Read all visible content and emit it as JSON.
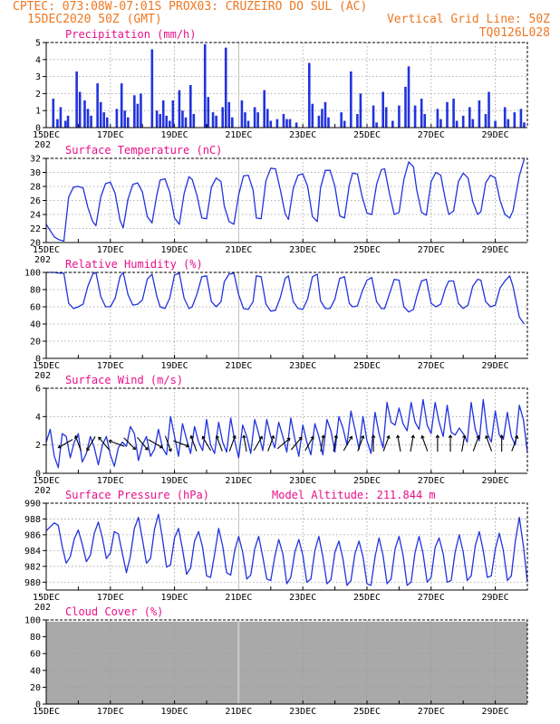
{
  "header": {
    "line1_left": "CPTEC:   073:08W-07:01S   PROX03: CRUZEIRO DO SUL (AC)",
    "line2_left": "15DEC2020 50Z (GMT)",
    "line2_right": "Vertical Grid Line: 50Z",
    "line3_right": "TQ0126L028"
  },
  "colors": {
    "header": "#ee7722",
    "panel_title": "#e8108a",
    "series": "#2233dd",
    "cloud": "#a9a9a9",
    "grid": "#9a9a9a",
    "text": "#000000"
  },
  "x_axis": {
    "labels": [
      "15DEC",
      "17DEC",
      "19DEC",
      "21DEC",
      "23DEC",
      "25DEC",
      "27DEC",
      "29DEC"
    ],
    "label_days": [
      0,
      2,
      4,
      6,
      8,
      10,
      12,
      14
    ],
    "partial_label": "202",
    "xlim_days": [
      0,
      15
    ],
    "vertical_grid_days": [
      6
    ]
  },
  "chart_data": [
    {
      "type": "bar",
      "title": "Precipitation (mm/h)",
      "ylim": [
        0,
        5
      ],
      "yticks": [
        0,
        1,
        2,
        3,
        4,
        5
      ],
      "grid": true,
      "x_unit": "days since 15DEC2020",
      "x": [
        0.22,
        0.35,
        0.45,
        0.6,
        0.68,
        0.95,
        1.05,
        1.2,
        1.3,
        1.4,
        1.6,
        1.7,
        1.8,
        1.9,
        2.2,
        2.35,
        2.45,
        2.55,
        2.75,
        2.85,
        2.95,
        3.3,
        3.45,
        3.55,
        3.65,
        3.75,
        3.85,
        3.95,
        4.15,
        4.25,
        4.35,
        4.5,
        4.6,
        4.95,
        5.05,
        5.2,
        5.3,
        5.5,
        5.6,
        5.7,
        5.8,
        6.1,
        6.2,
        6.3,
        6.5,
        6.6,
        6.8,
        6.9,
        7.0,
        7.2,
        7.4,
        7.5,
        7.6,
        7.8,
        8.2,
        8.3,
        8.5,
        8.6,
        8.7,
        8.8,
        9.2,
        9.3,
        9.5,
        9.7,
        9.8,
        10.2,
        10.3,
        10.5,
        10.6,
        10.8,
        11.0,
        11.2,
        11.3,
        11.5,
        11.7,
        11.8,
        12.2,
        12.3,
        12.5,
        12.7,
        12.8,
        13.0,
        13.2,
        13.3,
        13.5,
        13.7,
        13.8,
        14.0,
        14.3,
        14.4,
        14.6,
        14.8,
        14.9
      ],
      "values": [
        1.7,
        0.5,
        1.2,
        0.4,
        0.7,
        3.3,
        2.1,
        1.6,
        1.1,
        0.7,
        2.6,
        1.5,
        0.9,
        0.6,
        1.1,
        2.6,
        1.0,
        0.6,
        1.9,
        1.4,
        2.0,
        4.6,
        1.0,
        0.8,
        1.6,
        0.7,
        0.4,
        1.6,
        2.2,
        1.0,
        0.6,
        2.5,
        0.8,
        4.9,
        1.8,
        0.9,
        0.7,
        1.2,
        4.7,
        1.5,
        0.6,
        1.6,
        0.9,
        0.4,
        1.2,
        0.9,
        2.2,
        1.1,
        0.4,
        0.5,
        0.8,
        0.5,
        0.5,
        0.3,
        3.8,
        1.4,
        0.7,
        1.1,
        1.5,
        0.6,
        0.9,
        0.4,
        3.3,
        0.8,
        2.0,
        1.3,
        0.3,
        2.1,
        1.2,
        0.4,
        1.3,
        2.4,
        3.6,
        1.3,
        1.7,
        0.8,
        1.1,
        0.5,
        1.5,
        1.7,
        0.4,
        0.7,
        1.2,
        0.5,
        1.6,
        0.8,
        2.1,
        0.4,
        1.2,
        0.5,
        0.9,
        1.1,
        0.3
      ]
    },
    {
      "type": "line",
      "title": "Surface Temperature (nC)",
      "ylim": [
        20,
        32
      ],
      "yticks": [
        20,
        22,
        24,
        26,
        28,
        30,
        32
      ],
      "grid": true,
      "x_unit": "days since 15DEC2020",
      "x": [
        0.0,
        0.25,
        0.4,
        0.55,
        0.7,
        0.85,
        1.0,
        1.15,
        1.3,
        1.45,
        1.55,
        1.7,
        1.85,
        2.0,
        2.15,
        2.3,
        2.4,
        2.55,
        2.7,
        2.85,
        3.0,
        3.15,
        3.3,
        3.45,
        3.55,
        3.7,
        3.85,
        4.0,
        4.15,
        4.3,
        4.45,
        4.55,
        4.7,
        4.85,
        5.0,
        5.15,
        5.3,
        5.45,
        5.55,
        5.7,
        5.85,
        6.0,
        6.15,
        6.3,
        6.45,
        6.55,
        6.7,
        6.85,
        7.0,
        7.15,
        7.3,
        7.45,
        7.55,
        7.7,
        7.85,
        8.0,
        8.15,
        8.3,
        8.45,
        8.55,
        8.7,
        8.85,
        9.0,
        9.15,
        9.3,
        9.45,
        9.55,
        9.7,
        9.85,
        10.0,
        10.15,
        10.3,
        10.45,
        10.55,
        10.7,
        10.85,
        11.0,
        11.15,
        11.3,
        11.45,
        11.55,
        11.7,
        11.85,
        12.0,
        12.15,
        12.3,
        12.45,
        12.55,
        12.7,
        12.85,
        13.0,
        13.15,
        13.3,
        13.45,
        13.55,
        13.7,
        13.85,
        14.0,
        14.15,
        14.3,
        14.45,
        14.55,
        14.75,
        14.9
      ],
      "values": [
        22.6,
        20.8,
        20.4,
        20.2,
        26.5,
        27.9,
        28.0,
        27.8,
        25.0,
        23.0,
        22.4,
        26.5,
        28.4,
        28.6,
        27.0,
        23.2,
        22.1,
        26.2,
        28.3,
        28.5,
        27.2,
        23.7,
        22.8,
        26.8,
        28.9,
        29.1,
        27.2,
        23.5,
        22.6,
        27.0,
        29.4,
        29.0,
        26.7,
        23.5,
        23.4,
        27.9,
        29.2,
        28.7,
        25.2,
        23.0,
        22.6,
        26.8,
        29.5,
        29.6,
        27.5,
        23.5,
        23.4,
        28.8,
        30.6,
        30.5,
        27.5,
        24.1,
        23.3,
        27.7,
        29.6,
        29.8,
        28.0,
        23.7,
        23.0,
        27.8,
        30.3,
        30.3,
        28.0,
        23.8,
        23.5,
        28.2,
        29.9,
        29.8,
        26.5,
        24.2,
        24.0,
        28.3,
        30.4,
        30.5,
        27.0,
        24.0,
        24.3,
        29.0,
        31.5,
        30.8,
        27.5,
        24.3,
        23.9,
        28.7,
        30.0,
        29.6,
        26.0,
        24.0,
        24.5,
        28.7,
        29.9,
        29.2,
        25.8,
        24.0,
        24.4,
        28.5,
        29.6,
        29.2,
        26.0,
        24.0,
        23.5,
        24.5,
        29.5,
        31.9
      ]
    },
    {
      "type": "line",
      "title": "Relative Humidity (%)",
      "ylim": [
        0,
        100
      ],
      "yticks": [
        0,
        20,
        40,
        60,
        80,
        100
      ],
      "grid": true,
      "x_unit": "days since 15DEC2020",
      "x": [
        0.0,
        0.25,
        0.4,
        0.55,
        0.7,
        0.85,
        1.0,
        1.15,
        1.3,
        1.45,
        1.55,
        1.7,
        1.85,
        2.0,
        2.15,
        2.3,
        2.4,
        2.55,
        2.7,
        2.85,
        3.0,
        3.15,
        3.3,
        3.45,
        3.55,
        3.7,
        3.85,
        4.0,
        4.15,
        4.3,
        4.45,
        4.55,
        4.7,
        4.85,
        5.0,
        5.15,
        5.3,
        5.45,
        5.55,
        5.7,
        5.85,
        6.0,
        6.15,
        6.3,
        6.45,
        6.55,
        6.7,
        6.85,
        7.0,
        7.15,
        7.3,
        7.45,
        7.55,
        7.7,
        7.85,
        8.0,
        8.15,
        8.3,
        8.45,
        8.55,
        8.7,
        8.85,
        9.0,
        9.15,
        9.3,
        9.45,
        9.55,
        9.7,
        9.85,
        10.0,
        10.15,
        10.3,
        10.45,
        10.55,
        10.7,
        10.85,
        11.0,
        11.15,
        11.3,
        11.45,
        11.55,
        11.7,
        11.85,
        12.0,
        12.15,
        12.3,
        12.45,
        12.55,
        12.7,
        12.85,
        13.0,
        13.15,
        13.3,
        13.45,
        13.55,
        13.7,
        13.85,
        14.0,
        14.15,
        14.3,
        14.45,
        14.55,
        14.75,
        14.9
      ],
      "values": [
        100,
        100,
        99,
        99,
        64,
        58,
        60,
        63,
        84,
        98,
        100,
        72,
        60,
        60,
        70,
        95,
        100,
        74,
        62,
        63,
        68,
        92,
        98,
        72,
        60,
        58,
        70,
        97,
        99,
        70,
        58,
        60,
        75,
        95,
        96,
        66,
        60,
        66,
        89,
        98,
        99,
        74,
        58,
        57,
        66,
        96,
        95,
        63,
        55,
        56,
        71,
        93,
        96,
        66,
        58,
        57,
        69,
        95,
        98,
        67,
        58,
        58,
        69,
        93,
        95,
        64,
        60,
        61,
        78,
        91,
        94,
        66,
        58,
        58,
        75,
        92,
        91,
        60,
        54,
        57,
        72,
        90,
        92,
        64,
        60,
        63,
        82,
        90,
        90,
        64,
        58,
        62,
        84,
        92,
        91,
        66,
        60,
        62,
        82,
        90,
        96,
        84,
        48,
        40
      ]
    },
    {
      "type": "line",
      "title": "Surface Wind (m/s)",
      "ylim": [
        0,
        6
      ],
      "yticks": [
        0,
        2,
        4,
        6
      ],
      "grid": true,
      "x_unit": "days since 15DEC2020",
      "x": [
        0.0,
        0.125,
        0.25,
        0.375,
        0.5,
        0.625,
        0.75,
        0.875,
        1.0,
        1.125,
        1.25,
        1.375,
        1.5,
        1.625,
        1.75,
        1.875,
        2.0,
        2.125,
        2.25,
        2.375,
        2.5,
        2.625,
        2.75,
        2.875,
        3.0,
        3.125,
        3.25,
        3.375,
        3.5,
        3.625,
        3.75,
        3.875,
        4.0,
        4.125,
        4.25,
        4.375,
        4.5,
        4.625,
        4.75,
        4.875,
        5.0,
        5.125,
        5.25,
        5.375,
        5.5,
        5.625,
        5.75,
        5.875,
        6.0,
        6.125,
        6.25,
        6.375,
        6.5,
        6.625,
        6.75,
        6.875,
        7.0,
        7.125,
        7.25,
        7.375,
        7.5,
        7.625,
        7.75,
        7.875,
        8.0,
        8.125,
        8.25,
        8.375,
        8.5,
        8.625,
        8.75,
        8.875,
        9.0,
        9.125,
        9.25,
        9.375,
        9.5,
        9.625,
        9.75,
        9.875,
        10.0,
        10.125,
        10.25,
        10.375,
        10.5,
        10.625,
        10.75,
        10.875,
        11.0,
        11.125,
        11.25,
        11.375,
        11.5,
        11.625,
        11.75,
        11.875,
        12.0,
        12.125,
        12.25,
        12.375,
        12.5,
        12.625,
        12.75,
        12.875,
        13.0,
        13.125,
        13.25,
        13.375,
        13.5,
        13.625,
        13.75,
        13.875,
        14.0,
        14.125,
        14.25,
        14.375,
        14.5,
        14.625,
        14.75,
        14.875,
        15.0
      ],
      "values": [
        2.2,
        3.1,
        1.2,
        0.4,
        2.8,
        2.6,
        1.1,
        2.2,
        2.8,
        0.8,
        1.4,
        2.6,
        1.8,
        0.6,
        2.0,
        2.6,
        1.3,
        0.5,
        1.8,
        2.2,
        1.9,
        3.3,
        2.8,
        0.9,
        2.0,
        2.6,
        1.2,
        1.7,
        3.1,
        1.8,
        1.3,
        4.0,
        2.6,
        1.2,
        3.5,
        2.4,
        1.4,
        3.3,
        2.2,
        1.6,
        3.8,
        2.0,
        1.4,
        3.6,
        2.2,
        1.5,
        3.9,
        2.3,
        1.1,
        3.4,
        2.6,
        1.4,
        3.8,
        2.8,
        1.6,
        3.8,
        2.6,
        1.8,
        3.6,
        2.6,
        1.5,
        3.9,
        2.4,
        1.2,
        3.4,
        2.2,
        1.3,
        3.5,
        2.6,
        1.3,
        3.8,
        3.0,
        1.5,
        4.0,
        3.2,
        2.0,
        4.4,
        3.1,
        1.7,
        4.0,
        2.3,
        1.4,
        4.3,
        2.8,
        1.8,
        5.0,
        3.6,
        3.4,
        4.6,
        3.5,
        3.0,
        5.0,
        3.6,
        3.1,
        5.2,
        3.4,
        2.8,
        5.0,
        3.6,
        2.6,
        4.8,
        2.9,
        2.7,
        3.2,
        2.8,
        2.2,
        5.0,
        3.1,
        2.3,
        5.2,
        2.8,
        2.2,
        4.4,
        2.7,
        2.4,
        4.3,
        2.6,
        2.0,
        4.8,
        3.8,
        1.5
      ],
      "barb_x": [
        0.6,
        1.0,
        1.4,
        1.8,
        2.2,
        2.6,
        3.0,
        3.4,
        3.8,
        4.2,
        4.6,
        5.0,
        5.4,
        5.8,
        6.2,
        6.6,
        7.0,
        7.4,
        7.8,
        8.2,
        8.6,
        9.0,
        9.4,
        9.8,
        10.2,
        10.6,
        11.0,
        11.4,
        11.8,
        12.2,
        12.6,
        13.0,
        13.4,
        13.8,
        14.2,
        14.6
      ],
      "barb_dir_deg": [
        300,
        200,
        330,
        220,
        250,
        45,
        40,
        60,
        20,
        70,
        200,
        210,
        200,
        160,
        190,
        150,
        160,
        130,
        140,
        150,
        170,
        170,
        150,
        160,
        180,
        160,
        190,
        170,
        200,
        180,
        180,
        170,
        160,
        200,
        180,
        160
      ]
    },
    {
      "type": "line",
      "title": "Surface Pressure (hPa)",
      "subtitle": "Model Altitude: 211.844 m",
      "ylim": [
        979,
        990
      ],
      "yticks": [
        980,
        982,
        984,
        986,
        988,
        990
      ],
      "grid": true,
      "x_unit": "days since 15DEC2020",
      "x": [
        0.0,
        0.125,
        0.25,
        0.375,
        0.5,
        0.625,
        0.75,
        0.875,
        1.0,
        1.125,
        1.25,
        1.375,
        1.5,
        1.625,
        1.75,
        1.875,
        2.0,
        2.125,
        2.25,
        2.375,
        2.5,
        2.625,
        2.75,
        2.875,
        3.0,
        3.125,
        3.25,
        3.375,
        3.5,
        3.625,
        3.75,
        3.875,
        4.0,
        4.125,
        4.25,
        4.375,
        4.5,
        4.625,
        4.75,
        4.875,
        5.0,
        5.125,
        5.25,
        5.375,
        5.5,
        5.625,
        5.75,
        5.875,
        6.0,
        6.125,
        6.25,
        6.375,
        6.5,
        6.625,
        6.75,
        6.875,
        7.0,
        7.125,
        7.25,
        7.375,
        7.5,
        7.625,
        7.75,
        7.875,
        8.0,
        8.125,
        8.25,
        8.375,
        8.5,
        8.625,
        8.75,
        8.875,
        9.0,
        9.125,
        9.25,
        9.375,
        9.5,
        9.625,
        9.75,
        9.875,
        10.0,
        10.125,
        10.25,
        10.375,
        10.5,
        10.625,
        10.75,
        10.875,
        11.0,
        11.125,
        11.25,
        11.375,
        11.5,
        11.625,
        11.75,
        11.875,
        12.0,
        12.125,
        12.25,
        12.375,
        12.5,
        12.625,
        12.75,
        12.875,
        13.0,
        13.125,
        13.25,
        13.375,
        13.5,
        13.625,
        13.75,
        13.875,
        14.0,
        14.125,
        14.25,
        14.375,
        14.5,
        14.625,
        14.75,
        14.875,
        15.0
      ],
      "values": [
        986.5,
        987.0,
        987.5,
        987.2,
        984.5,
        982.4,
        983.2,
        985.5,
        986.6,
        984.8,
        982.6,
        983.4,
        986.2,
        987.6,
        985.6,
        983.0,
        983.7,
        986.4,
        986.1,
        983.6,
        981.2,
        983.3,
        986.8,
        988.2,
        985.4,
        982.4,
        983.0,
        986.7,
        988.6,
        985.5,
        981.9,
        982.2,
        985.6,
        986.8,
        984.2,
        981.0,
        981.8,
        985.2,
        986.4,
        984.4,
        980.8,
        980.6,
        983.5,
        986.8,
        984.6,
        981.2,
        980.9,
        984.0,
        985.8,
        983.8,
        980.4,
        980.9,
        984.2,
        985.8,
        983.2,
        980.4,
        980.2,
        983.2,
        985.4,
        983.6,
        979.8,
        980.6,
        983.8,
        985.4,
        983.4,
        980.0,
        980.4,
        984.0,
        985.8,
        983.2,
        979.8,
        980.3,
        983.8,
        985.2,
        983.0,
        979.6,
        980.2,
        983.6,
        985.2,
        983.2,
        979.8,
        979.6,
        983.2,
        985.6,
        983.4,
        979.8,
        980.4,
        984.2,
        985.8,
        983.4,
        979.6,
        980.0,
        983.8,
        985.8,
        983.6,
        980.0,
        980.6,
        984.4,
        985.6,
        983.6,
        980.0,
        980.2,
        983.8,
        986.0,
        983.8,
        980.2,
        980.8,
        984.6,
        986.4,
        984.0,
        980.6,
        980.8,
        984.2,
        986.2,
        984.0,
        980.2,
        980.8,
        985.2,
        988.2,
        984.6,
        980.0
      ],
      "x_unit_note": ""
    },
    {
      "type": "area",
      "title": "Cloud Cover (%)",
      "ylim": [
        0,
        100
      ],
      "yticks": [
        0,
        20,
        40,
        60,
        80,
        100
      ],
      "grid": true,
      "x_unit": "days since 15DEC2020",
      "x": [
        0.0,
        15.0
      ],
      "values": [
        98,
        98
      ]
    }
  ]
}
